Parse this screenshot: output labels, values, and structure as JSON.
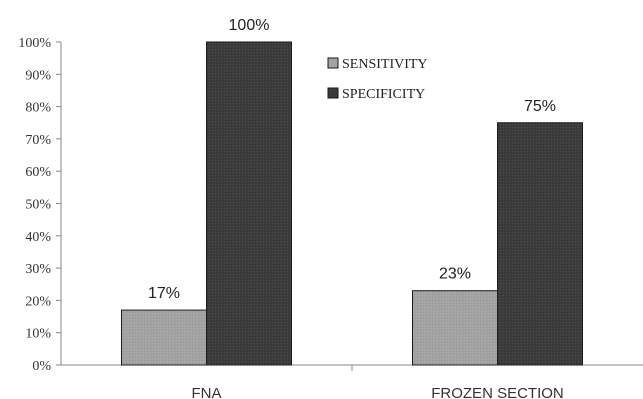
{
  "chart_data": {
    "type": "bar",
    "categories": [
      "FNA",
      "FROZEN SECTION"
    ],
    "series": [
      {
        "name": "SENSITIVITY",
        "values": [
          17,
          23
        ],
        "labels": [
          "17%",
          "23%"
        ],
        "color": "#a3a3a3"
      },
      {
        "name": "SPECIFICITY",
        "values": [
          100,
          75
        ],
        "labels": [
          "100%",
          "75%"
        ],
        "color": "#3b3b3b"
      }
    ],
    "ylim": [
      0,
      100
    ],
    "yticks": [
      "0%",
      "10%",
      "20%",
      "30%",
      "40%",
      "50%",
      "60%",
      "70%",
      "80%",
      "90%",
      "100%"
    ],
    "title": "",
    "xlabel": "",
    "ylabel": "",
    "grid": false,
    "legend": "top-center"
  }
}
